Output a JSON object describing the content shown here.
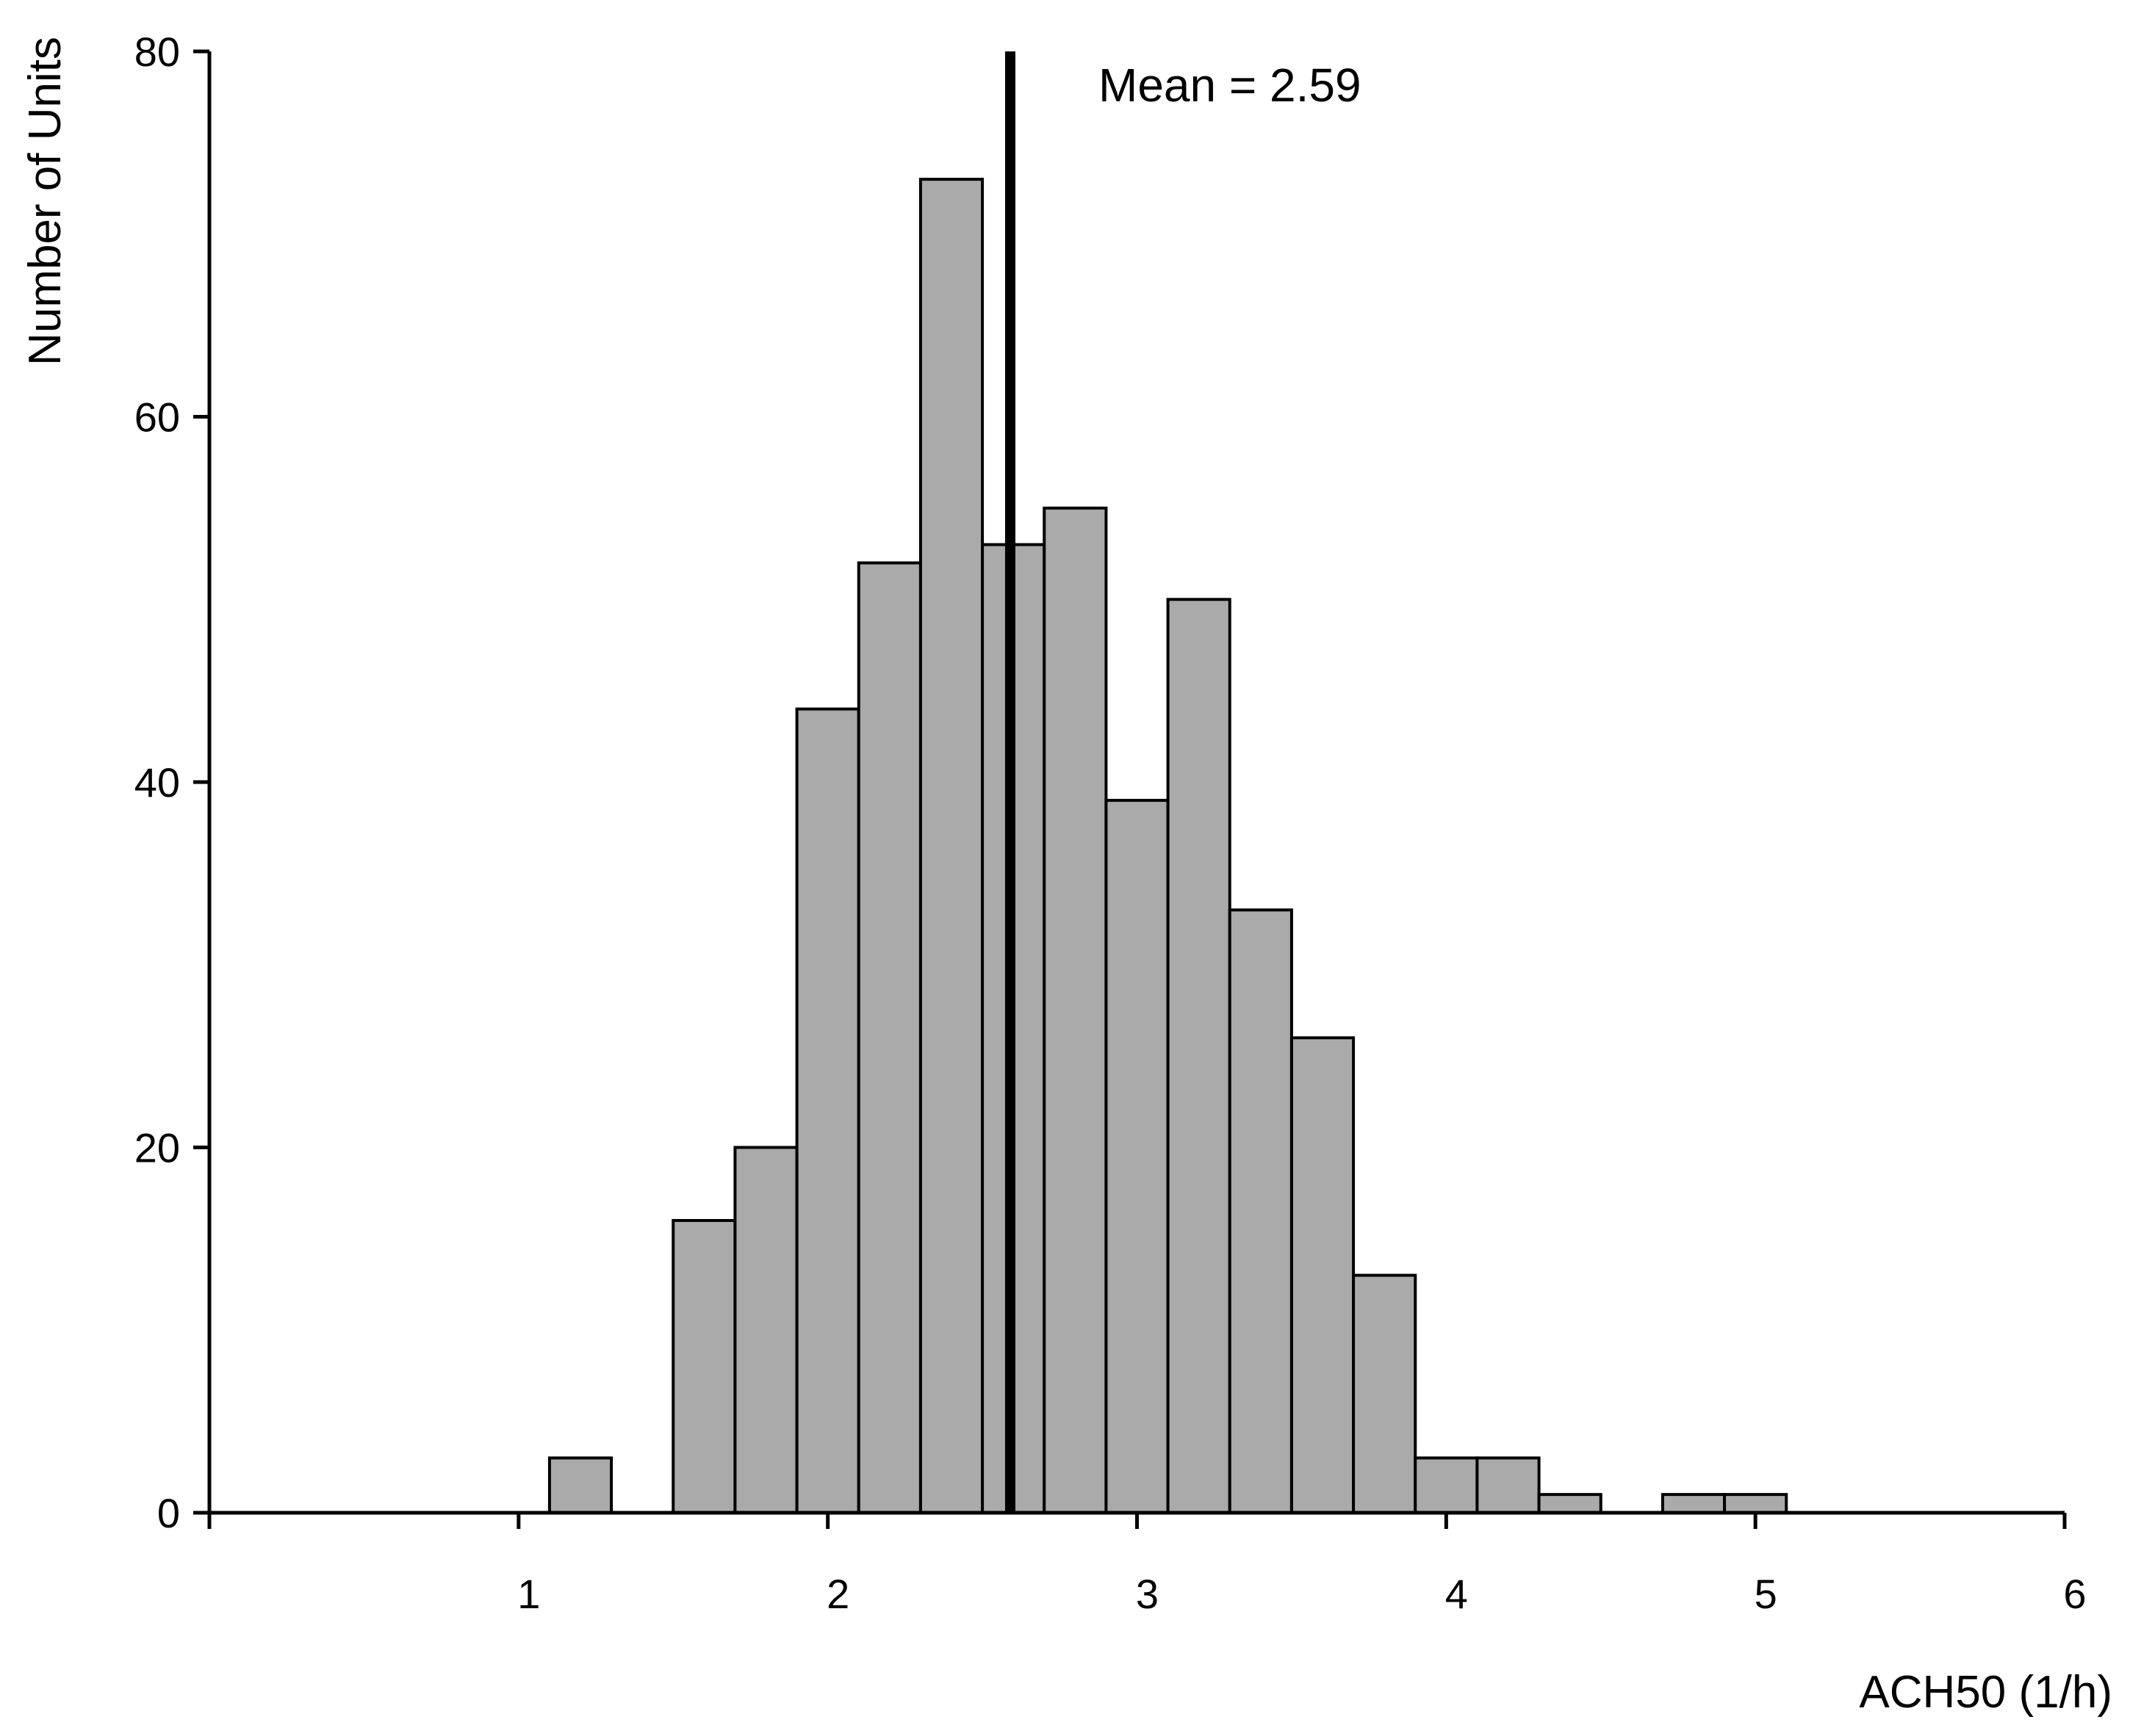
{
  "chart_data": {
    "type": "bar",
    "title": "",
    "xlabel": "ACH50 (1/h)",
    "ylabel": "Number of Units",
    "xlim": [
      0,
      6
    ],
    "ylim": [
      0,
      80
    ],
    "x_ticks": [
      1,
      2,
      3,
      4,
      5,
      6
    ],
    "y_ticks": [
      0,
      20,
      40,
      60,
      80
    ],
    "bin_width": 0.2,
    "bins": [
      {
        "x0": 1.1,
        "x1": 1.3,
        "count": 3
      },
      {
        "x0": 1.5,
        "x1": 1.7,
        "count": 16
      },
      {
        "x0": 1.7,
        "x1": 1.9,
        "count": 20
      },
      {
        "x0": 1.9,
        "x1": 2.1,
        "count": 44
      },
      {
        "x0": 2.1,
        "x1": 2.3,
        "count": 52
      },
      {
        "x0": 2.3,
        "x1": 2.5,
        "count": 73
      },
      {
        "x0": 2.5,
        "x1": 2.7,
        "count": 53
      },
      {
        "x0": 2.7,
        "x1": 2.9,
        "count": 55
      },
      {
        "x0": 2.9,
        "x1": 3.1,
        "count": 39
      },
      {
        "x0": 3.1,
        "x1": 3.3,
        "count": 50
      },
      {
        "x0": 3.3,
        "x1": 3.5,
        "count": 33
      },
      {
        "x0": 3.5,
        "x1": 3.7,
        "count": 26
      },
      {
        "x0": 3.7,
        "x1": 3.9,
        "count": 13
      },
      {
        "x0": 3.9,
        "x1": 4.1,
        "count": 3
      },
      {
        "x0": 4.1,
        "x1": 4.3,
        "count": 3
      },
      {
        "x0": 4.3,
        "x1": 4.5,
        "count": 1
      },
      {
        "x0": 4.7,
        "x1": 4.9,
        "count": 1
      },
      {
        "x0": 4.9,
        "x1": 5.1,
        "count": 1
      }
    ],
    "mean": 2.59,
    "mean_label": "Mean = 2.59",
    "grid": false,
    "colors": {
      "bar_fill": "#aaaaaa",
      "bar_stroke": "#000000",
      "mean_line": "#000000"
    }
  }
}
